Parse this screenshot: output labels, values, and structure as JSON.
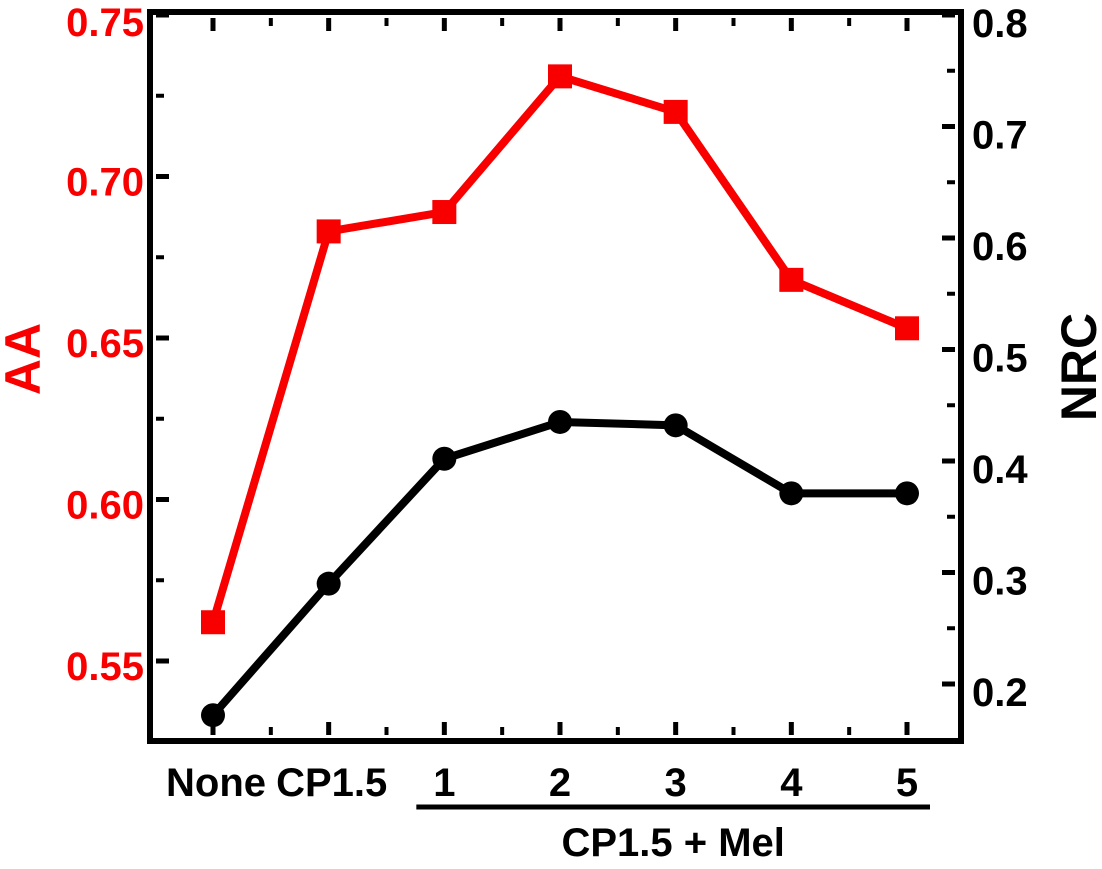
{
  "figure": {
    "background": "#ffffff",
    "title": ""
  },
  "chart_data": {
    "type": "line",
    "categories": [
      "None",
      "CP1.5",
      "1",
      "2",
      "3",
      "4",
      "5"
    ],
    "series": [
      {
        "name": "AA",
        "axis": "left",
        "color": "#f80000",
        "marker": "square",
        "values": [
          0.562,
          0.683,
          0.689,
          0.731,
          0.72,
          0.668,
          0.653
        ]
      },
      {
        "name": "NRC",
        "axis": "right",
        "color": "#000000",
        "marker": "circle",
        "values": [
          0.172,
          0.29,
          0.402,
          0.435,
          0.432,
          0.371,
          0.371
        ]
      }
    ],
    "left_axis": {
      "label": "AA",
      "color": "#f80000",
      "major_tick_values": [
        0.75,
        0.7,
        0.65,
        0.6,
        0.55
      ],
      "major_tick_labels": [
        "0.75",
        "0.70",
        "0.65",
        "0.60",
        "0.55"
      ],
      "minor_tick_values": [
        0.725,
        0.675,
        0.625,
        0.575
      ],
      "ylim": [
        0.526,
        0.75
      ]
    },
    "right_axis": {
      "label": "NRC",
      "color": "#000000",
      "major_tick_values": [
        0.8,
        0.7,
        0.6,
        0.5,
        0.4,
        0.3,
        0.2
      ],
      "major_tick_labels": [
        "0.8",
        "0.7",
        "0.6",
        "0.5",
        "0.4",
        "0.3",
        "0.2"
      ],
      "minor_tick_values": [
        0.75,
        0.65,
        0.55,
        0.45,
        0.35,
        0.25
      ],
      "ylim": [
        0.152,
        0.8
      ]
    },
    "x_axis": {
      "tick_labels": [
        "None",
        "CP1.5",
        "1",
        "2",
        "3",
        "4",
        "5"
      ],
      "group_label": "CP1.5 + Mel",
      "group_underline_categories": [
        "1",
        "2",
        "3",
        "4",
        "5"
      ],
      "grid": false
    },
    "legend": "none"
  }
}
